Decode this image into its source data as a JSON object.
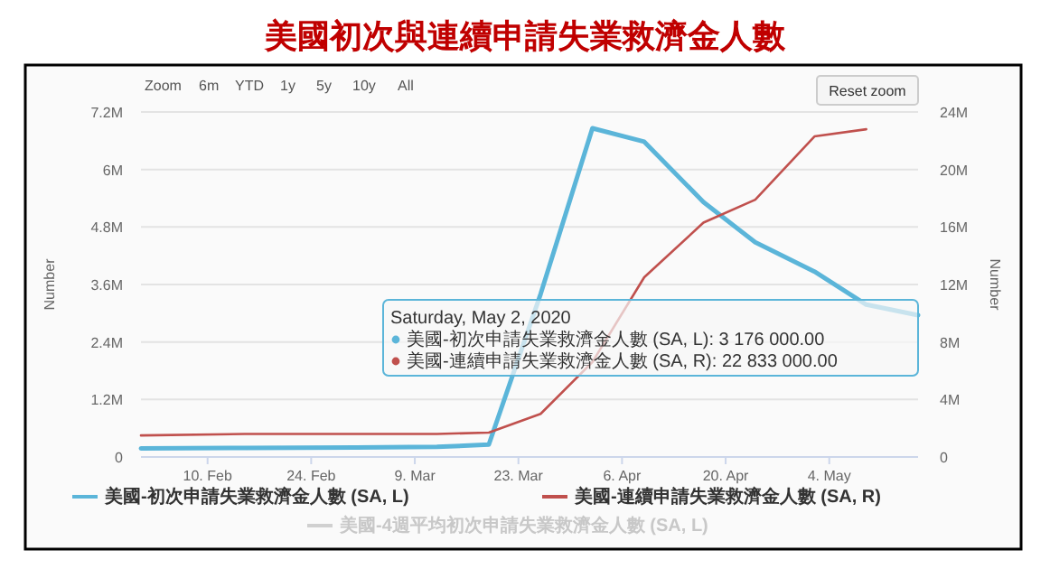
{
  "chart_data": {
    "type": "line",
    "title": "美國初次與連續申請失業救濟金人數",
    "ylabel": "Number",
    "y2label": "Number",
    "x": [
      "2020-02-01",
      "2020-02-15",
      "2020-03-01",
      "2020-03-12",
      "2020-03-19",
      "2020-03-26",
      "2020-04-02",
      "2020-04-09",
      "2020-04-17",
      "2020-04-24",
      "2020-05-02",
      "2020-05-09",
      "2020-05-16"
    ],
    "series": [
      {
        "name": "美國-初次申請失業救濟金人數 (SA, L)",
        "color": "#5bb5d9",
        "axis": "y",
        "values": [
          180000,
          190000,
          200000,
          210000,
          260000,
          3400000,
          6860000,
          6580000,
          5320000,
          4480000,
          3870000,
          3180000,
          2960000
        ]
      },
      {
        "name": "美國-連續申請失業救濟金人數 (SA, R)",
        "color": "#c0504d",
        "axis": "y2",
        "values": [
          1500000,
          1600000,
          1600000,
          1600000,
          1700000,
          3000000,
          6600000,
          12500000,
          16300000,
          17900000,
          22300000,
          22800000,
          null
        ]
      },
      {
        "name": "美國-4週平均初次申請失業救濟金人數 (SA, L)",
        "color": "#d0d0d0",
        "axis": "y",
        "values": [
          null,
          null,
          null,
          null,
          null,
          null,
          null,
          null,
          null,
          null,
          null,
          null,
          null
        ]
      }
    ],
    "xlim": [
      "2020-02-01",
      "2020-05-16"
    ],
    "xticks": [
      {
        "value": "2020-02-10",
        "label": "10. Feb"
      },
      {
        "value": "2020-02-24",
        "label": "24. Feb"
      },
      {
        "value": "2020-03-09",
        "label": "9. Mar"
      },
      {
        "value": "2020-03-23",
        "label": "23. Mar"
      },
      {
        "value": "2020-04-06",
        "label": "6. Apr"
      },
      {
        "value": "2020-04-20",
        "label": "20. Apr"
      },
      {
        "value": "2020-05-04",
        "label": "4. May"
      }
    ],
    "ylim": [
      0,
      7200000
    ],
    "yticks": [
      {
        "value": 0,
        "label": "0"
      },
      {
        "value": 1200000,
        "label": "1.2M"
      },
      {
        "value": 2400000,
        "label": "2.4M"
      },
      {
        "value": 3600000,
        "label": "3.6M"
      },
      {
        "value": 4800000,
        "label": "4.8M"
      },
      {
        "value": 6000000,
        "label": "6M"
      },
      {
        "value": 7200000,
        "label": "7.2M"
      }
    ],
    "y2lim": [
      0,
      24000000
    ],
    "y2ticks": [
      {
        "value": 0,
        "label": "0"
      },
      {
        "value": 4000000,
        "label": "4M"
      },
      {
        "value": 8000000,
        "label": "8M"
      },
      {
        "value": 12000000,
        "label": "12M"
      },
      {
        "value": 16000000,
        "label": "16M"
      },
      {
        "value": 20000000,
        "label": "20M"
      },
      {
        "value": 24000000,
        "label": "24M"
      }
    ],
    "grid": "y",
    "legend": "bottom",
    "marker": "none",
    "line_style": "solid",
    "annotations": [
      "Zoom",
      "6m",
      "YTD",
      "1y",
      "5y",
      "10y",
      "All",
      "Reset zoom",
      "Saturday, May 2, 2020",
      "美國-初次申請失業救濟金人數 (SA, L): 3 176 000.00",
      "美國-連續申請失業救濟金人數 (SA, R): 22 833 000.00"
    ]
  }
}
